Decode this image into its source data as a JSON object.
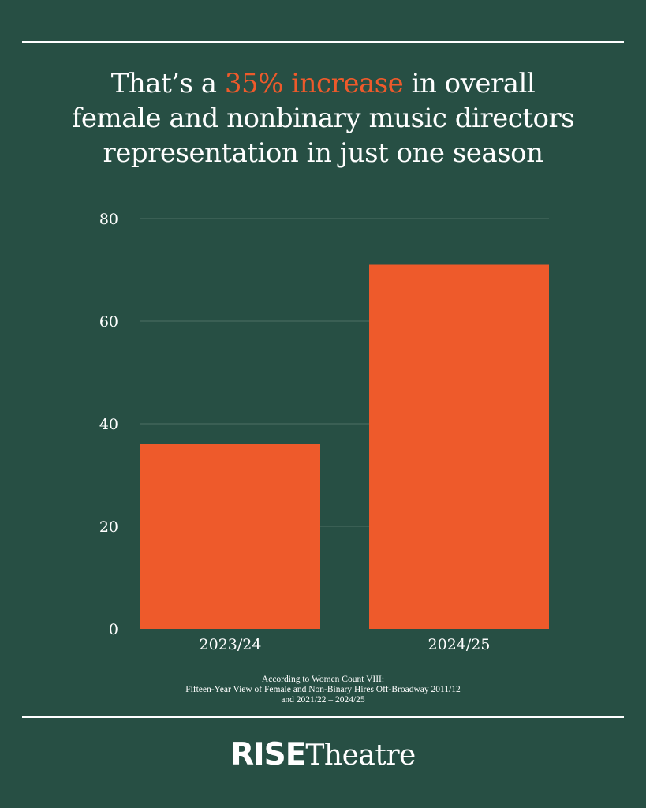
{
  "headline": {
    "before": "That’s a ",
    "highlight": "35% increase",
    "after": " in overall female and nonbinary music directors representation in just one season"
  },
  "colors": {
    "background": "#274f44",
    "bar": "#ee5a2b",
    "accent": "#ee5a2b",
    "gridline": "#4c6f64",
    "text": "#ffffff"
  },
  "chart_data": {
    "type": "bar",
    "categories": [
      "2023/24",
      "2024/25"
    ],
    "values": [
      36,
      71
    ],
    "ylim": [
      0,
      80
    ],
    "yticks": [
      0,
      20,
      40,
      60,
      80
    ],
    "grid": true,
    "title": "",
    "xlabel": "",
    "ylabel": ""
  },
  "source": {
    "line1": "According to Women Count VIII:",
    "line2": "Fifteen-Year View of Female and Non-Binary Hires Off-Broadway 2011/12",
    "line3": "and 2021/22 – 2024/25"
  },
  "logo": {
    "bold": "RISE",
    "light": "Theatre"
  }
}
